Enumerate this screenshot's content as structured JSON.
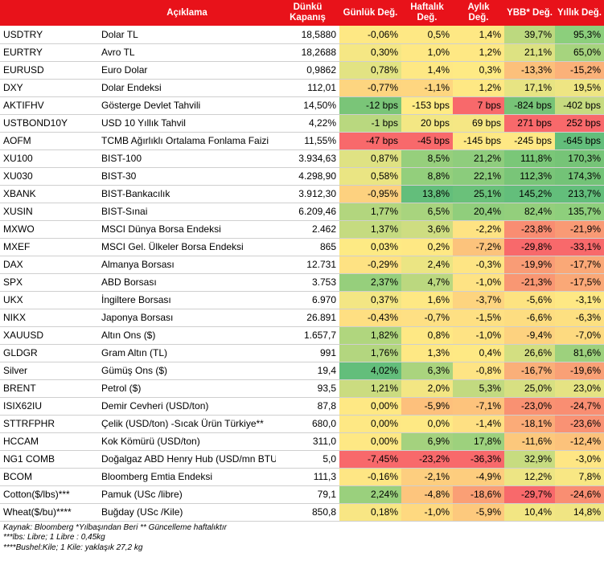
{
  "header": {
    "ticker": "",
    "description": "Açıklama",
    "close_line1": "Dünkü",
    "close_line2": "Kapanış",
    "daily": "Günlük Değ.",
    "weekly_line1": "Haftalık",
    "weekly_line2": "Değ.",
    "monthly_line1": "Aylık",
    "monthly_line2": "Değ.",
    "ytd": "YBB* Değ.",
    "yearly": "Yıllık Değ."
  },
  "rows": [
    {
      "ticker": "USDTRY",
      "desc": "Dolar TL",
      "close": "18,5880",
      "d": "-0,06%",
      "w": "0,5%",
      "m": "1,4%",
      "ytd": "39,7%",
      "y": "95,3%",
      "cd": "#fee884",
      "cw": "#fee884",
      "cm": "#fee884",
      "cytd": "#bcd97f",
      "cy": "#8ccf7c"
    },
    {
      "ticker": "EURTRY",
      "desc": "Avro TL",
      "close": "18,2688",
      "d": "0,30%",
      "w": "1,0%",
      "m": "1,2%",
      "ytd": "21,1%",
      "y": "65,0%",
      "cd": "#f5e784",
      "cw": "#fee884",
      "cm": "#fee884",
      "cytd": "#dde282",
      "cy": "#a6d47e"
    },
    {
      "ticker": "EURUSD",
      "desc": "Euro Dolar",
      "close": "0,9862",
      "d": "0,78%",
      "w": "1,4%",
      "m": "0,3%",
      "ytd": "-13,3%",
      "y": "-15,2%",
      "cd": "#e2e383",
      "cw": "#fee884",
      "cm": "#feea84",
      "cytd": "#fcc07b",
      "cy": "#fbb179"
    },
    {
      "ticker": "DXY",
      "desc": "Dolar Endeksi",
      "close": "112,01",
      "d": "-0,77%",
      "w": "-1,1%",
      "m": "1,2%",
      "ytd": "17,1%",
      "y": "19,5%",
      "cd": "#fdd580",
      "cw": "#fed680",
      "cm": "#fee884",
      "cytd": "#e7e483",
      "cy": "#eee583"
    },
    {
      "ticker": "AKTIFHV",
      "desc": "Gösterge Devlet Tahvili",
      "close": "14,50%",
      "d": "-12 bps",
      "w": "-153 bps",
      "m": "7 bps",
      "ytd": "-824 bps",
      "y": "-402 bps",
      "cd": "#7ac578",
      "cw": "#ffeb84",
      "cm": "#f8696b",
      "cytd": "#77c377",
      "cy": "#c6db80"
    },
    {
      "ticker": "USTBOND10Y",
      "desc": "USD 10 Yıllık Tahvil",
      "close": "4,22%",
      "d": "-1 bps",
      "w": "20 bps",
      "m": "69 bps",
      "ytd": "271 bps",
      "y": "252 bps",
      "cd": "#b9d87f",
      "cw": "#f3e784",
      "cm": "#f5e784",
      "cytd": "#f8696b",
      "cy": "#f8696b"
    },
    {
      "ticker": "AOFM",
      "desc": "TCMB Ağırlıklı Ortalama Fonlama Faizi",
      "close": "11,55%",
      "d": "-47 bps",
      "w": "-45 bps",
      "m": "-145 bps",
      "ytd": "-245 bps",
      "y": "-645 bps",
      "cd": "#f8696b",
      "cw": "#f8696b",
      "cm": "#fee884",
      "cytd": "#fee884",
      "cy": "#63be7b"
    },
    {
      "ticker": "XU100",
      "desc": "BIST-100",
      "close": "3.934,63",
      "d": "0,87%",
      "w": "8,5%",
      "m": "21,2%",
      "ytd": "111,8%",
      "y": "170,3%",
      "cd": "#dfe283",
      "cw": "#96cf7c",
      "cm": "#8fcd7d",
      "cytd": "#7ac778",
      "cy": "#76c477"
    },
    {
      "ticker": "XU030",
      "desc": "BIST-30",
      "close": "4.298,90",
      "d": "0,58%",
      "w": "8,8%",
      "m": "22,1%",
      "ytd": "112,3%",
      "y": "174,3%",
      "cd": "#eae583",
      "cw": "#93cf7c",
      "cm": "#8bcc7c",
      "cytd": "#79c578",
      "cy": "#73c377"
    },
    {
      "ticker": "XBANK",
      "desc": "BIST-Bankacılık",
      "close": "3.912,30",
      "d": "-0,95%",
      "w": "13,8%",
      "m": "25,1%",
      "ytd": "145,2%",
      "y": "213,7%",
      "cd": "#fdd17f",
      "cw": "#63be7b",
      "cm": "#6ac17a",
      "cytd": "#63be7b",
      "cy": "#63be7b"
    },
    {
      "ticker": "XUSIN",
      "desc": "BIST-Sınai",
      "close": "6.209,46",
      "d": "1,77%",
      "w": "6,5%",
      "m": "20,4%",
      "ytd": "82,4%",
      "y": "135,7%",
      "cd": "#b2d67e",
      "cw": "#a8d47e",
      "cm": "#90ce7c",
      "cytd": "#93cf7c",
      "cy": "#8ecf7c"
    },
    {
      "ticker": "MXWO",
      "desc": "MSCI Dünya Borsa Endeksi",
      "close": "2.462",
      "d": "1,37%",
      "w": "3,6%",
      "m": "-2,2%",
      "ytd": "-23,8%",
      "y": "-21,9%",
      "cd": "#c5db80",
      "cw": "#cedd81",
      "cm": "#fee383",
      "cytd": "#f98d72",
      "cy": "#f99a75"
    },
    {
      "ticker": "MXEF",
      "desc": "MSCI Gel. Ülkeler Borsa Endeksi",
      "close": "865",
      "d": "0,03%",
      "w": "0,2%",
      "m": "-7,2%",
      "ytd": "-29,8%",
      "y": "-33,1%",
      "cd": "#fdea84",
      "cw": "#fee884",
      "cm": "#fcc37c",
      "cytd": "#f8696b",
      "cy": "#f8696b"
    },
    {
      "ticker": "DAX",
      "desc": "Almanya Borsası",
      "close": "12.731",
      "d": "-0,29%",
      "w": "2,4%",
      "m": "-0,3%",
      "ytd": "-19,9%",
      "y": "-17,7%",
      "cd": "#fee283",
      "cw": "#ebe583",
      "cm": "#fee584",
      "cytd": "#f99c76",
      "cy": "#faa877"
    },
    {
      "ticker": "SPX",
      "desc": "ABD Borsası",
      "close": "3.753",
      "d": "2,37%",
      "w": "4,7%",
      "m": "-1,0%",
      "ytd": "-21,3%",
      "y": "-17,5%",
      "cd": "#96cf7c",
      "cw": "#bbd87f",
      "cm": "#fee384",
      "cytd": "#f99773",
      "cy": "#faa877"
    },
    {
      "ticker": "UKX",
      "desc": "İngiltere Borsası",
      "close": "6.970",
      "d": "0,37%",
      "w": "1,6%",
      "m": "-3,7%",
      "ytd": "-5,6%",
      "y": "-3,1%",
      "cd": "#f3e684",
      "cw": "#fee884",
      "cm": "#fdd47f",
      "cytd": "#fde381",
      "cy": "#fee884"
    },
    {
      "ticker": "NIKX",
      "desc": "Japonya Borsası",
      "close": "26.891",
      "d": "-0,43%",
      "w": "-0,7%",
      "m": "-1,5%",
      "ytd": "-6,6%",
      "y": "-6,3%",
      "cd": "#fedf82",
      "cw": "#fee084",
      "cm": "#fee083",
      "cytd": "#fddd81",
      "cy": "#fde081"
    },
    {
      "ticker": "XAUUSD",
      "desc": "Altın Ons ($)",
      "close": "1.657,7",
      "d": "1,82%",
      "w": "0,8%",
      "m": "-1,0%",
      "ytd": "-9,4%",
      "y": "-7,0%",
      "cd": "#b0d67e",
      "cw": "#fee884",
      "cm": "#fee384",
      "cytd": "#fdd27f",
      "cy": "#fdda80"
    },
    {
      "ticker": "GLDGR",
      "desc": "Gram Altın (TL)",
      "close": "991",
      "d": "1,76%",
      "w": "1,3%",
      "m": "0,4%",
      "ytd": "26,6%",
      "y": "81,6%",
      "cd": "#b3d67f",
      "cw": "#fee884",
      "cm": "#fee984",
      "cytd": "#d3df81",
      "cy": "#9dd17d"
    },
    {
      "ticker": "Silver",
      "desc": "Gümüş Ons ($)",
      "close": "19,4",
      "d": "4,02%",
      "w": "6,3%",
      "m": "-0,8%",
      "ytd": "-16,7%",
      "y": "-19,6%",
      "cd": "#63be7b",
      "cw": "#aad47e",
      "cm": "#fee484",
      "cytd": "#faaf79",
      "cy": "#f9a076"
    },
    {
      "ticker": "BRENT",
      "desc": "Petrol ($)",
      "close": "93,5",
      "d": "1,21%",
      "w": "2,0%",
      "m": "5,3%",
      "ytd": "25,0%",
      "y": "23,0%",
      "cd": "#cbdc80",
      "cw": "#f3e683",
      "cm": "#c2da80",
      "cytd": "#d7e082",
      "cy": "#e5e383"
    },
    {
      "ticker": "ISIX62IU",
      "desc": "Demir Cevheri (USD/ton)",
      "close": "87,8",
      "d": "0,00%",
      "w": "-5,9%",
      "m": "-7,1%",
      "ytd": "-23,0%",
      "y": "-24,7%",
      "cd": "#fee884",
      "cw": "#fdc07c",
      "cm": "#fdc37c",
      "cytd": "#f99172",
      "cy": "#f98e72"
    },
    {
      "ticker": "STTRFPHR",
      "desc": "Çelik (USD/ton) -Sıcak Ürün Türkiye**",
      "close": "680,0",
      "d": "0,00%",
      "w": "0,0%",
      "m": "-1,4%",
      "ytd": "-18,1%",
      "y": "-23,6%",
      "cd": "#fee884",
      "cw": "#fee984",
      "cm": "#fee083",
      "cytd": "#fbab78",
      "cy": "#f99274"
    },
    {
      "ticker": "HCCAM",
      "desc": "Kok Kömürü (USD/ton)",
      "close": "311,0",
      "d": "0,00%",
      "w": "6,9%",
      "m": "17,8%",
      "ytd": "-11,6%",
      "y": "-12,4%",
      "cd": "#fee884",
      "cw": "#a4d27e",
      "cm": "#9dd17d",
      "cytd": "#fcc87c",
      "cy": "#fcc27b"
    },
    {
      "ticker": "NG1 COMB",
      "desc": "Doğalgaz ABD Henry Hub (USD/mn BTU)",
      "close": "5,0",
      "d": "-7,45%",
      "w": "-23,2%",
      "m": "-36,3%",
      "ytd": "32,9%",
      "y": "-3,0%",
      "cd": "#f8696b",
      "cw": "#f8696b",
      "cm": "#f8696b",
      "cytd": "#c7dc80",
      "cy": "#fee684"
    },
    {
      "ticker": "BCOM",
      "desc": "Bloomberg Emtia Endeksi",
      "close": "111,3",
      "d": "-0,16%",
      "w": "-2,1%",
      "m": "-4,9%",
      "ytd": "12,2%",
      "y": "7,8%",
      "cd": "#fee684",
      "cw": "#fdce7f",
      "cm": "#fdcd7e",
      "cytd": "#ede584",
      "cy": "#f8e784"
    },
    {
      "ticker": "Cotton($/lbs)***",
      "desc": "Pamuk (USc /libre)",
      "close": "79,1",
      "d": "2,24%",
      "w": "-4,8%",
      "m": "-18,6%",
      "ytd": "-29,7%",
      "y": "-24,6%",
      "cd": "#9ad07d",
      "cw": "#fdc57d",
      "cm": "#fa9f75",
      "cytd": "#f8696b",
      "cy": "#f98e72"
    },
    {
      "ticker": "Wheat($/bu)****",
      "desc": "Buğday (USc /Kile)",
      "close": "850,8",
      "d": "0,18%",
      "w": "-1,0%",
      "m": "-5,9%",
      "ytd": "10,4%",
      "y": "14,8%",
      "cd": "#f8e684",
      "cw": "#fed980",
      "cm": "#fdc97d",
      "cytd": "#f2e683",
      "cy": "#f0e583"
    }
  ],
  "notes": [
    "Kaynak: Bloomberg *Yılbaşından Beri  ** Güncelleme haftalıktır",
    "***lbs: Libre; 1 Libre : 0,45kg",
    "****Bushel:Kile; 1 Kile: yaklaşık 27,2 kg"
  ]
}
